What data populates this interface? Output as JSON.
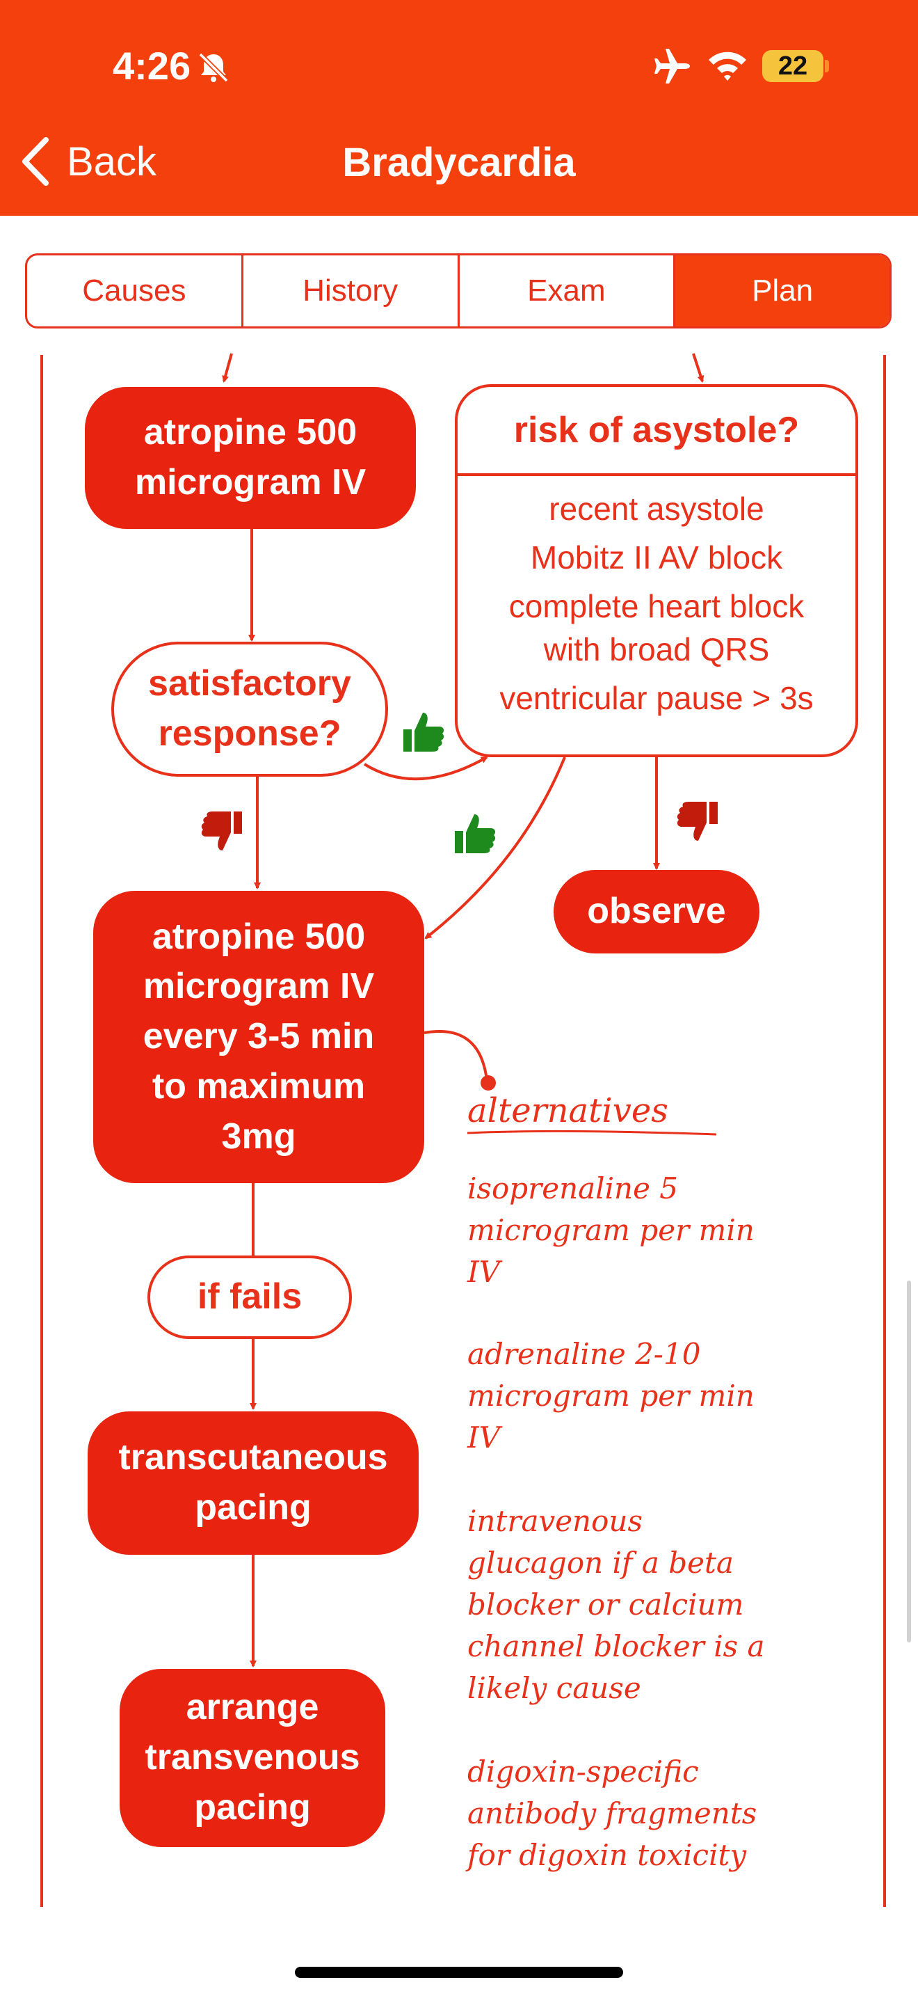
{
  "status_bar": {
    "time": "4:26",
    "battery": "22"
  },
  "nav": {
    "back_label": "Back",
    "title": "Bradycardia"
  },
  "tabs": [
    {
      "label": "Causes",
      "active": false
    },
    {
      "label": "History",
      "active": false
    },
    {
      "label": "Exam",
      "active": false
    },
    {
      "label": "Plan",
      "active": true
    }
  ],
  "flow": {
    "atropine_first": "atropine 500\nmicrogram IV",
    "satisfactory": "satisfactory\nresponse?",
    "risk_title": "risk of asystole?",
    "risk_items": [
      "recent asystole",
      "Mobitz II AV block",
      "complete heart block\nwith broad QRS",
      "ventricular pause > 3s"
    ],
    "observe": "observe",
    "atropine_repeat": "atropine 500\nmicrogram IV\nevery 3-5 min\nto maximum\n3mg",
    "if_fails": "if fails",
    "transcutaneous": "transcutaneous\npacing",
    "transvenous": "arrange\ntransvenous\npacing"
  },
  "alternatives": {
    "title": "alternatives",
    "items": [
      "isoprenaline 5\nmicrogram per min\nIV",
      "adrenaline 2-10\nmicrogram per min\nIV",
      "intravenous\nglucagon if a beta\nblocker or calcium\nchannel blocker is a\nlikely cause",
      "digoxin-specific\nantibody fragments\nfor digoxin toxicity"
    ]
  },
  "colors": {
    "header": "#f4400c",
    "accent": "#e8230f",
    "thumb_yes": "#1e8a1e",
    "thumb_no": "#c11c0c"
  }
}
